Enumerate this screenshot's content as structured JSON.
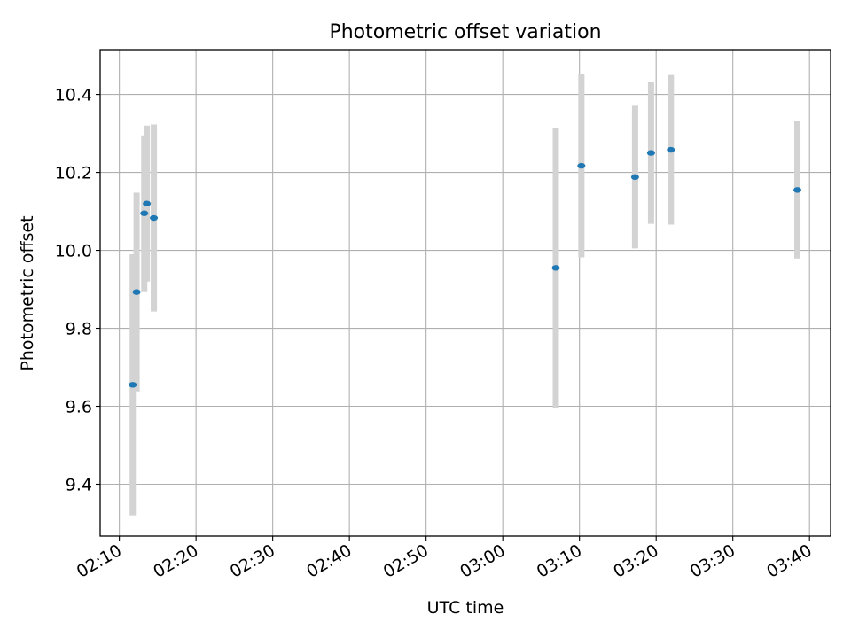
{
  "chart_data": {
    "type": "scatter",
    "title": "Photometric offset variation",
    "xlabel": "UTC time",
    "ylabel": "Photometric offset",
    "x_tick_labels": [
      "02:10",
      "02:20",
      "02:30",
      "02:40",
      "02:50",
      "03:00",
      "03:10",
      "03:20",
      "03:30",
      "03:40"
    ],
    "y_tick_labels": [
      "9.4",
      "9.6",
      "9.8",
      "10.0",
      "10.2",
      "10.4"
    ],
    "xlim": [
      "02:07:30",
      "03:42:45"
    ],
    "ylim": [
      9.267,
      10.515
    ],
    "grid": true,
    "marker_color": "#1f77b4",
    "errorbar_color": "#d3d3d3",
    "points": [
      {
        "time": "02:11:45",
        "y": 9.655,
        "yerr": 0.335
      },
      {
        "time": "02:12:15",
        "y": 9.893,
        "yerr": 0.255
      },
      {
        "time": "02:13:15",
        "y": 10.095,
        "yerr": 0.2
      },
      {
        "time": "02:13:35",
        "y": 10.12,
        "yerr": 0.2
      },
      {
        "time": "02:14:30",
        "y": 10.083,
        "yerr": 0.24
      },
      {
        "time": "03:06:55",
        "y": 9.955,
        "yerr": 0.36
      },
      {
        "time": "03:10:15",
        "y": 10.217,
        "yerr": 0.235
      },
      {
        "time": "03:17:15",
        "y": 10.188,
        "yerr": 0.183
      },
      {
        "time": "03:19:20",
        "y": 10.25,
        "yerr": 0.182
      },
      {
        "time": "03:21:55",
        "y": 10.258,
        "yerr": 0.192
      },
      {
        "time": "03:38:25",
        "y": 10.155,
        "yerr": 0.176
      }
    ]
  }
}
